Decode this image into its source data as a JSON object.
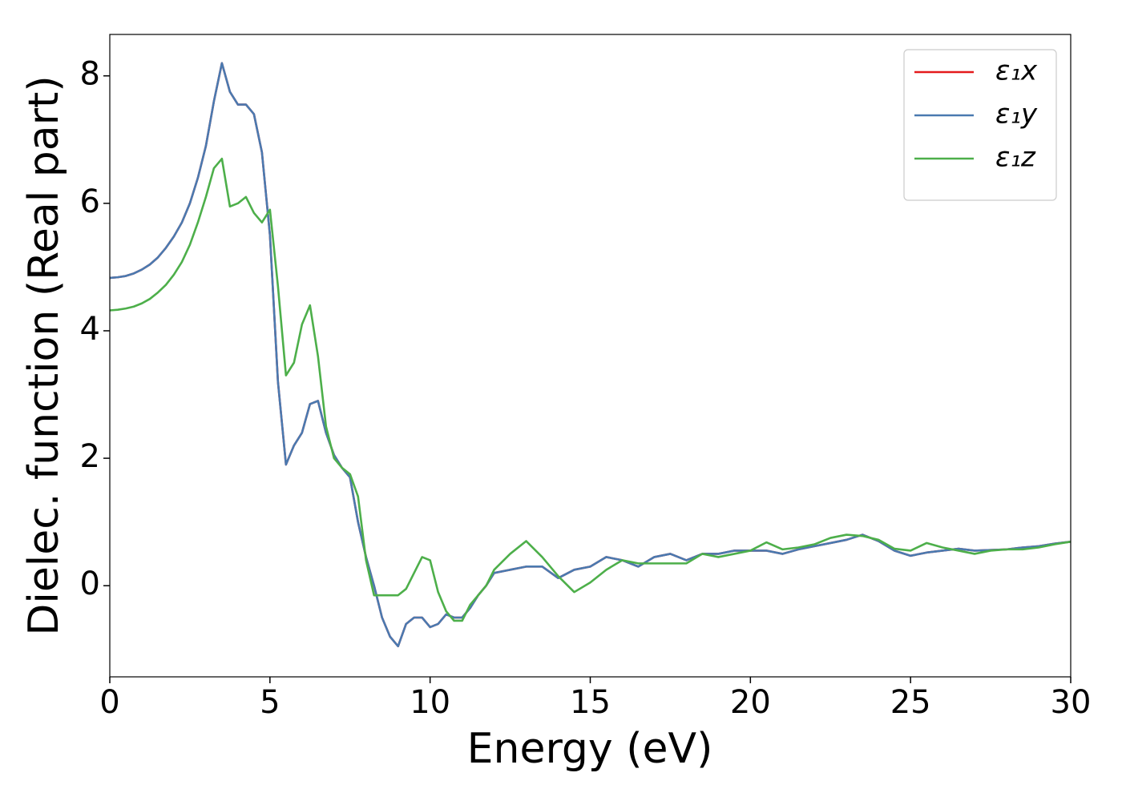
{
  "chart_data": {
    "type": "line",
    "xlabel": "Energy (eV)",
    "ylabel": "Dielec. function (Real part)",
    "x": [
      0,
      0.25,
      0.5,
      0.75,
      1,
      1.25,
      1.5,
      1.75,
      2,
      2.25,
      2.5,
      2.75,
      3,
      3.25,
      3.5,
      3.75,
      4,
      4.25,
      4.5,
      4.75,
      5,
      5.25,
      5.5,
      5.75,
      6,
      6.25,
      6.5,
      6.75,
      7,
      7.25,
      7.5,
      7.75,
      8,
      8.25,
      8.5,
      8.75,
      9,
      9.25,
      9.5,
      9.75,
      10,
      10.25,
      10.5,
      10.75,
      11,
      11.25,
      11.5,
      11.75,
      12,
      12.5,
      13,
      13.5,
      14,
      14.5,
      15,
      15.5,
      16,
      16.5,
      17,
      17.5,
      18,
      18.5,
      19,
      19.5,
      20,
      20.5,
      21,
      21.5,
      22,
      22.5,
      23,
      23.5,
      24,
      24.5,
      25,
      25.5,
      26,
      26.5,
      27,
      27.5,
      28,
      28.5,
      29,
      29.5,
      30
    ],
    "series": [
      {
        "name": "ε₁x",
        "color": "#e41a1c",
        "values": [
          4.83,
          4.84,
          4.86,
          4.9,
          4.96,
          5.04,
          5.15,
          5.3,
          5.48,
          5.7,
          6.0,
          6.4,
          6.9,
          7.6,
          8.2,
          7.75,
          7.55,
          7.55,
          7.4,
          6.8,
          5.5,
          3.2,
          1.9,
          2.2,
          2.4,
          2.85,
          2.9,
          2.4,
          2.05,
          1.85,
          1.7,
          1.0,
          0.45,
          0.0,
          -0.5,
          -0.8,
          -0.95,
          -0.6,
          -0.5,
          -0.5,
          -0.65,
          -0.6,
          -0.45,
          -0.5,
          -0.5,
          -0.35,
          -0.15,
          0.0,
          0.2,
          0.25,
          0.3,
          0.3,
          0.12,
          0.25,
          0.3,
          0.45,
          0.4,
          0.3,
          0.45,
          0.5,
          0.4,
          0.5,
          0.5,
          0.55,
          0.55,
          0.55,
          0.5,
          0.57,
          0.62,
          0.67,
          0.72,
          0.8,
          0.7,
          0.55,
          0.47,
          0.52,
          0.55,
          0.58,
          0.55,
          0.56,
          0.57,
          0.6,
          0.62,
          0.66,
          0.69
        ]
      },
      {
        "name": "ε₁y",
        "color": "#4a7ab0",
        "values": [
          4.83,
          4.84,
          4.86,
          4.9,
          4.96,
          5.04,
          5.15,
          5.3,
          5.48,
          5.7,
          6.0,
          6.4,
          6.9,
          7.6,
          8.2,
          7.75,
          7.55,
          7.55,
          7.4,
          6.8,
          5.5,
          3.2,
          1.9,
          2.2,
          2.4,
          2.85,
          2.9,
          2.4,
          2.05,
          1.85,
          1.7,
          1.0,
          0.45,
          0.0,
          -0.5,
          -0.8,
          -0.95,
          -0.6,
          -0.5,
          -0.5,
          -0.65,
          -0.6,
          -0.45,
          -0.5,
          -0.5,
          -0.35,
          -0.15,
          0.0,
          0.2,
          0.25,
          0.3,
          0.3,
          0.12,
          0.25,
          0.3,
          0.45,
          0.4,
          0.3,
          0.45,
          0.5,
          0.4,
          0.5,
          0.5,
          0.55,
          0.55,
          0.55,
          0.5,
          0.57,
          0.62,
          0.67,
          0.72,
          0.8,
          0.7,
          0.55,
          0.47,
          0.52,
          0.55,
          0.58,
          0.55,
          0.56,
          0.57,
          0.6,
          0.62,
          0.66,
          0.69
        ]
      },
      {
        "name": "ε₁z",
        "color": "#4daf4a",
        "values": [
          4.32,
          4.33,
          4.35,
          4.38,
          4.43,
          4.5,
          4.6,
          4.72,
          4.88,
          5.08,
          5.35,
          5.7,
          6.1,
          6.55,
          6.7,
          5.95,
          6.0,
          6.1,
          5.85,
          5.7,
          5.9,
          4.7,
          3.3,
          3.5,
          4.1,
          4.4,
          3.6,
          2.5,
          2.0,
          1.85,
          1.75,
          1.4,
          0.4,
          -0.15,
          -0.15,
          -0.15,
          -0.15,
          -0.05,
          0.2,
          0.45,
          0.4,
          -0.1,
          -0.4,
          -0.55,
          -0.55,
          -0.3,
          -0.15,
          0.0,
          0.25,
          0.5,
          0.7,
          0.45,
          0.15,
          -0.1,
          0.05,
          0.25,
          0.4,
          0.35,
          0.35,
          0.35,
          0.35,
          0.5,
          0.45,
          0.5,
          0.55,
          0.68,
          0.57,
          0.6,
          0.65,
          0.75,
          0.8,
          0.78,
          0.72,
          0.58,
          0.55,
          0.67,
          0.6,
          0.55,
          0.5,
          0.55,
          0.57,
          0.57,
          0.6,
          0.65,
          0.69
        ]
      }
    ],
    "xlim": [
      0,
      30
    ],
    "xticks": [
      0,
      5,
      10,
      15,
      20,
      25,
      30
    ],
    "ylim": [
      -1.43,
      8.65
    ],
    "yticks": [
      0,
      2,
      4,
      6,
      8
    ],
    "grid": false,
    "legend": "upper right"
  }
}
